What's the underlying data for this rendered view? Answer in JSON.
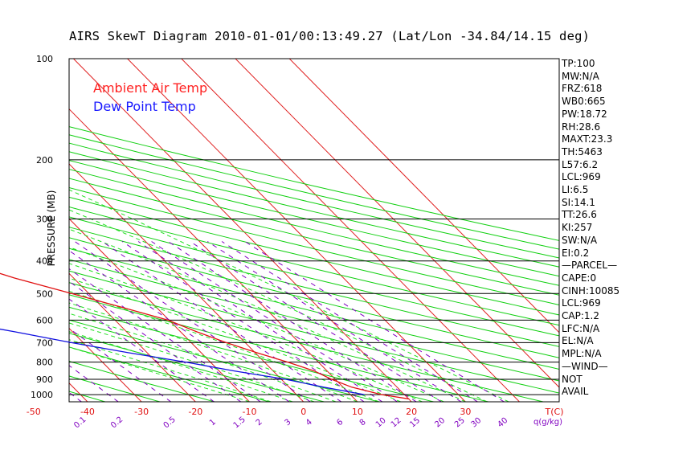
{
  "title": "AIRS SkewT Diagram 2010-01-01/00:13:49.27 (Lat/Lon -34.84/14.15 deg)",
  "legend": {
    "air": "Ambient Air Temp",
    "dew": "Dew Point Temp"
  },
  "colors": {
    "air": "#e01010",
    "dew": "#1010e0",
    "isotherm": "#e02020",
    "dry_adiabat": "#10d010",
    "moist_adiabat": "#20e020",
    "mixing_ratio": "#8000c0",
    "frame": "#000000"
  },
  "chart_data": {
    "type": "line",
    "title": "AIRS SkewT Diagram 2010-01-01/00:13:49.27 (Lat/Lon -34.84/14.15 deg)",
    "ylabel": "PRESSURE (MB)",
    "xlabel_right": "T(C)",
    "mixing_ratio_label": "q(g/kg)",
    "ylim_mb": [
      1050,
      100
    ],
    "y_scale": "log",
    "pressure_ticks": [
      100,
      200,
      300,
      400,
      500,
      600,
      700,
      800,
      900,
      1000
    ],
    "top_temp_ticks": [
      -120,
      -110,
      -100,
      -90,
      -80,
      -70,
      -60,
      -50,
      -40
    ],
    "bottom_temp_ticks": [
      -50,
      -40,
      -30,
      -20,
      -10,
      0,
      10,
      20,
      30
    ],
    "mixing_ratio_ticks": [
      "0.1",
      "0.2",
      "0.5",
      "1",
      "1.5",
      "2",
      "3",
      "4",
      "6",
      "8",
      "10",
      "12",
      "15",
      "20",
      "25",
      "30",
      "40"
    ],
    "series": [
      {
        "name": "Ambient Air Temp",
        "pressure": [
          1030,
          1000,
          950,
          900,
          850,
          800,
          750,
          700,
          650,
          600,
          550,
          500,
          450,
          400,
          350,
          300,
          250,
          200,
          180,
          160,
          140,
          120,
          100
        ],
        "values": [
          20.1,
          15.8,
          11.6,
          9.3,
          7.6,
          4.3,
          0.3,
          -3.5,
          -7.0,
          -10.2,
          -16.3,
          -23.2,
          -30.9,
          -37.9,
          -44.9,
          -52.0,
          -58.2,
          -62.7,
          -62.2,
          -60.7,
          -58.2,
          -54.9,
          -50.0
        ]
      },
      {
        "name": "Dew Point Temp",
        "pressure": [
          1000,
          950,
          900,
          850,
          800,
          750,
          700,
          650,
          600,
          550,
          500,
          450,
          400,
          350,
          300,
          250,
          200,
          150,
          100
        ],
        "values": [
          12.6,
          6.4,
          0.8,
          -7.2,
          -14.6,
          -23.5,
          -32.2,
          -40.7,
          -50.5,
          -52.5,
          -55.4,
          -58.2,
          -60.7,
          -67.5,
          -75.0,
          -79.2,
          -82.3,
          -86.9,
          -92.4
        ]
      }
    ]
  },
  "indices": [
    "TP:100",
    "MW:N/A",
    "FRZ:618",
    "WB0:665",
    "PW:18.72",
    "RH:28.6",
    "MAXT:23.3",
    "TH:5463",
    "L57:6.2",
    "LCL:969",
    "LI:6.5",
    "SI:14.1",
    "TT:26.6",
    "KI:257",
    "SW:N/A",
    "EI:0.2",
    "—PARCEL—",
    "CAPE:0",
    "CINH:10085",
    "LCL:969",
    "CAP:1.2",
    "LFC:N/A",
    "EL:N/A",
    "MPL:N/A",
    "—WIND—",
    " NOT",
    "AVAIL"
  ]
}
